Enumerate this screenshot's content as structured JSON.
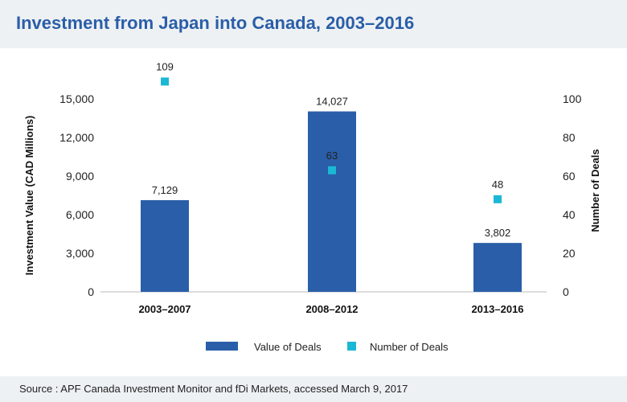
{
  "title": "Investment from Japan into Canada, 2003–2016",
  "source": "Source : APF Canada Investment Monitor and fDi Markets, accessed March 9, 2017",
  "colors": {
    "bar": "#2a5ea8",
    "point": "#1ab8d4",
    "title": "#2a5ea8",
    "band": "#eef1f3"
  },
  "chart_data": {
    "type": "bar",
    "categories": [
      "2003–2007",
      "2008–2012",
      "2013–2016"
    ],
    "series": [
      {
        "name": "Value of Deals",
        "type": "bar",
        "axis": "left",
        "values": [
          7129,
          14027,
          3802
        ],
        "labels": [
          "7,129",
          "14,027",
          "3,802"
        ]
      },
      {
        "name": "Number of Deals",
        "type": "scatter",
        "axis": "right",
        "values": [
          109,
          63,
          48
        ],
        "labels": [
          "109",
          "63",
          "48"
        ]
      }
    ],
    "ylabel": "Investment Value (CAD Millions)",
    "y2label": "Number of Deals",
    "ylim": [
      0,
      15000
    ],
    "y2lim": [
      0,
      100
    ],
    "yticks": [
      "0",
      "3,000",
      "6,000",
      "9,000",
      "12,000",
      "15,000"
    ],
    "y2ticks": [
      "0",
      "20",
      "40",
      "60",
      "80",
      "100"
    ],
    "grid": false,
    "legend": "bottom"
  }
}
